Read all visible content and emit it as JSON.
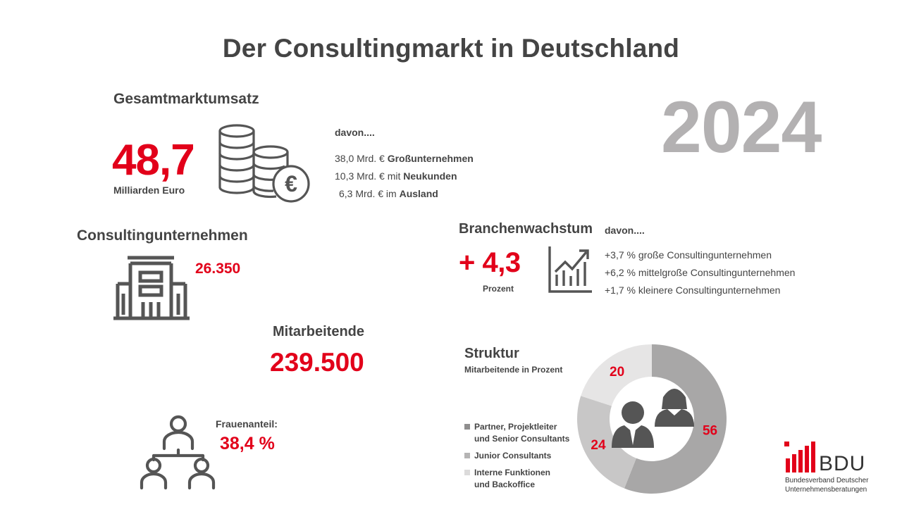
{
  "title": "Der Consultingmarkt in Deutschland",
  "year": "2024",
  "colors": {
    "accent": "#e2001a",
    "text": "#444444",
    "year_gray": "#b3b1b2"
  },
  "gesamtmarkt": {
    "heading": "Gesamtmarktumsatz",
    "value": "48,7",
    "unit": "Milliarden Euro",
    "icon": "coins-euro-icon",
    "davon_label": "davon....",
    "items": [
      {
        "amount": "38,0 Mrd. € ",
        "strong": "Großunternehmen"
      },
      {
        "amount": "10,3 Mrd. € mit ",
        "strong": "Neukunden"
      },
      {
        "amount": "6,3 Mrd. € im ",
        "strong": "Ausland"
      }
    ]
  },
  "unternehmen": {
    "heading": "Consultingunternehmen",
    "value": "26.350",
    "icon": "office-building-icon"
  },
  "wachstum": {
    "heading": "Branchenwachstum",
    "davon_label": "davon....",
    "value": "+ 4,3",
    "unit": "Prozent",
    "icon": "growth-chart-icon",
    "items": [
      "+3,7 % große Consultingunternehmen",
      "+6,2 % mittelgroße Consultingunternehmen",
      "+1,7 % kleinere Consultingunternehmen"
    ]
  },
  "mitarbeitende": {
    "heading": "Mitarbeitende",
    "value": "239.500"
  },
  "frauen": {
    "label": "Frauenanteil:",
    "value": "38,4 %",
    "icon": "org-people-icon"
  },
  "chart_data": {
    "type": "pie",
    "title": "Struktur",
    "subtitle": "Mitarbeitende in Prozent",
    "categories": [
      "Partner, Projektleiter und Senior Consultants",
      "Junior Consultants",
      "Interne Funktionen und Backoffice"
    ],
    "values": [
      56,
      24,
      20
    ],
    "labels": [
      "56",
      "24",
      "20"
    ],
    "colors": [
      "#a8a7a7",
      "#c8c7c7",
      "#e6e5e5"
    ],
    "legend": [
      {
        "line1": "Partner, Projektleiter",
        "line2": "und Senior Consultants"
      },
      {
        "line1": "Junior Consultants",
        "line2": ""
      },
      {
        "line1": "Interne Funktionen",
        "line2": "und Backoffice"
      }
    ]
  },
  "logo": {
    "name": "BDU",
    "line1": "Bundesverband Deutscher",
    "line2": "Unternehmensberatungen"
  }
}
